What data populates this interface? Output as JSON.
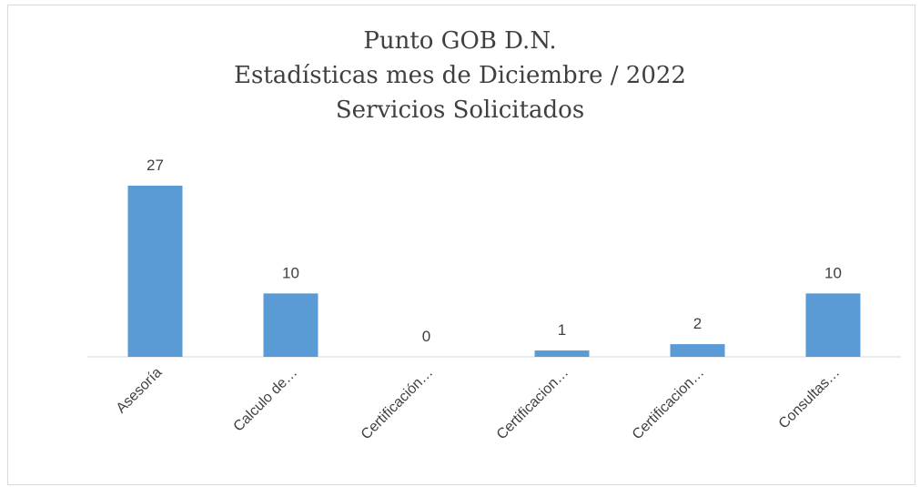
{
  "chart_data": {
    "type": "bar",
    "title_lines": [
      "Punto GOB D.N.",
      "Estadísticas mes de Diciembre / 2022",
      "Servicios Solicitados"
    ],
    "categories": [
      "Asesoría",
      "Calculo de…",
      "Certificación…",
      "Certificacion…",
      "Certificacion…",
      "Consultas…"
    ],
    "values": [
      27,
      10,
      0,
      1,
      2,
      10
    ],
    "data_labels": [
      "27",
      "10",
      "0",
      "1",
      "2",
      "10"
    ],
    "bar_color": "#5b9bd5",
    "ylim": [
      0,
      30
    ],
    "grid": false,
    "legend": "none"
  }
}
